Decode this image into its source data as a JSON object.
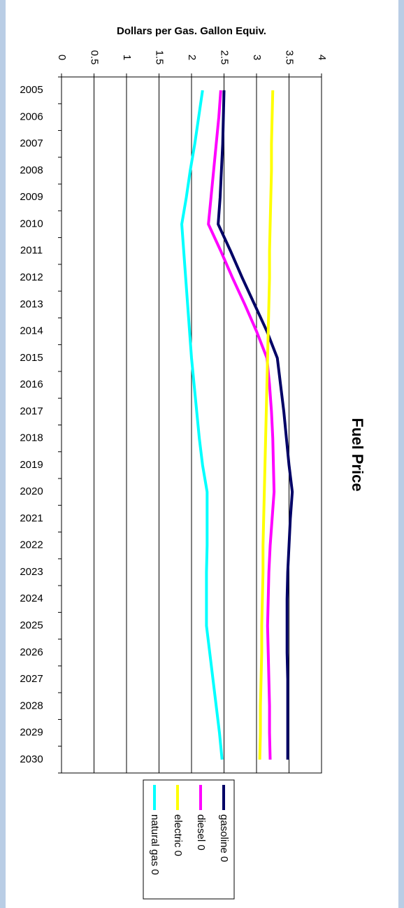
{
  "chart_data": {
    "type": "line",
    "title": "Fuel Price",
    "y_axis_label": "Dollars per Gas. Gallon Equiv.",
    "categories": [
      "2005",
      "2006",
      "2007",
      "2008",
      "2009",
      "2010",
      "2011",
      "2012",
      "2013",
      "2014",
      "2015",
      "2016",
      "2017",
      "2018",
      "2019",
      "2020",
      "2021",
      "2022",
      "2023",
      "2024",
      "2025",
      "2026",
      "2027",
      "2028",
      "2029",
      "2030"
    ],
    "series": [
      {
        "name": "gasoline 0",
        "color": "#000066",
        "values": [
          2.5,
          2.49,
          2.48,
          2.46,
          2.44,
          2.41,
          2.6,
          2.78,
          2.97,
          3.16,
          3.32,
          3.37,
          3.42,
          3.46,
          3.5,
          3.55,
          3.52,
          3.5,
          3.48,
          3.47,
          3.47,
          3.47,
          3.48,
          3.48,
          3.48,
          3.48
        ]
      },
      {
        "name": "diesel 0",
        "color": "#ff00ff",
        "values": [
          2.45,
          2.42,
          2.38,
          2.34,
          2.3,
          2.26,
          2.45,
          2.63,
          2.82,
          3.0,
          3.16,
          3.2,
          3.23,
          3.25,
          3.26,
          3.27,
          3.24,
          3.21,
          3.19,
          3.18,
          3.17,
          3.18,
          3.19,
          3.2,
          3.2,
          3.21
        ]
      },
      {
        "name": "electric 0",
        "color": "#ffff00",
        "values": [
          3.25,
          3.24,
          3.23,
          3.23,
          3.22,
          3.21,
          3.2,
          3.2,
          3.19,
          3.18,
          3.17,
          3.16,
          3.15,
          3.14,
          3.13,
          3.12,
          3.11,
          3.1,
          3.1,
          3.09,
          3.08,
          3.08,
          3.07,
          3.06,
          3.06,
          3.05
        ]
      },
      {
        "name": "natural gas 0",
        "color": "#00ffff",
        "values": [
          2.17,
          2.11,
          2.05,
          1.98,
          1.92,
          1.85,
          1.88,
          1.91,
          1.94,
          1.97,
          2.0,
          2.04,
          2.08,
          2.12,
          2.17,
          2.24,
          2.24,
          2.24,
          2.23,
          2.23,
          2.23,
          2.28,
          2.33,
          2.38,
          2.43,
          2.47
        ]
      }
    ],
    "ylim": [
      0,
      4
    ],
    "yticks": [
      0,
      0.5,
      1,
      1.5,
      2,
      2.5,
      3,
      3.5,
      4
    ],
    "grid": true
  }
}
